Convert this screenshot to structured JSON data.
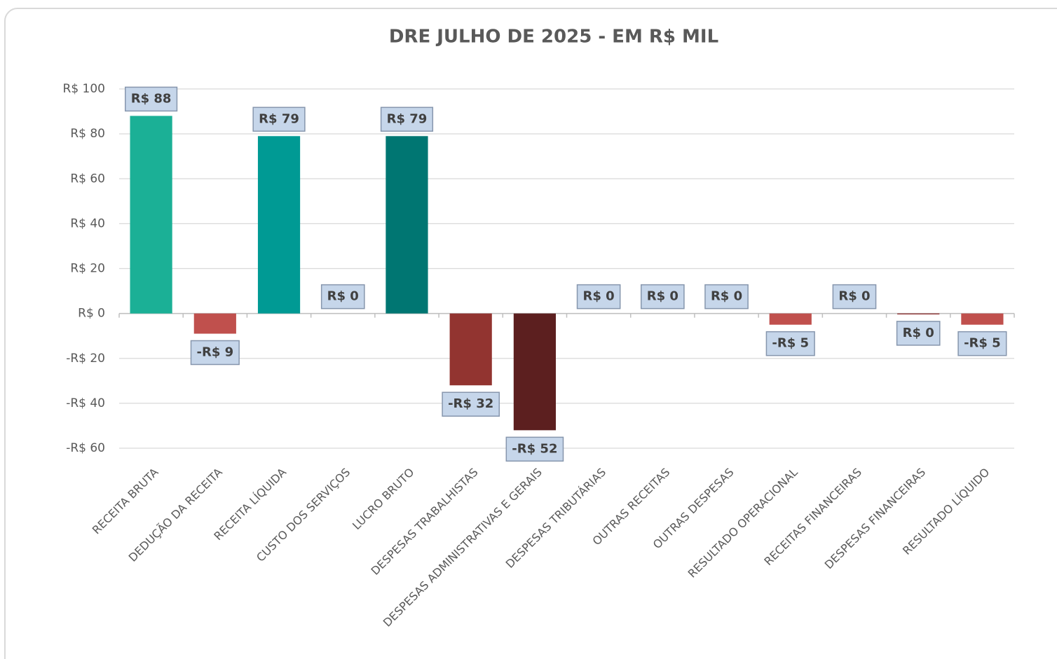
{
  "chart_data": {
    "type": "bar",
    "title": "DRE JULHO DE 2025 - EM R$ MIL",
    "categories": [
      "RECEITA BRUTA",
      "DEDUÇÃO DA RECEITA",
      "RECEITA LÍQUIDA",
      "CUSTO DOS SERVIÇOS",
      "LUCRO BRUTO",
      "DESPESAS TRABALHISTAS",
      "DESPESAS ADMINISTRATIVAS E GERAIS",
      "DESPESAS TRIBUTÁRIAS",
      "OUTRAS RECEITAS",
      "OUTRAS DESPESAS",
      "RESULTADO OPERACIONAL",
      "RECEITAS FINANCEIRAS",
      "DESPESAS FINANCEIRAS",
      "RESULTADO LÍQUIDO"
    ],
    "values": [
      88,
      -9,
      79,
      0,
      79,
      -32,
      -52,
      0,
      0,
      0,
      -5,
      0,
      -0.4,
      -5
    ],
    "value_labels": [
      "R$ 88",
      "-R$ 9",
      "R$ 79",
      "R$ 0",
      "R$ 79",
      "-R$ 32",
      "-R$ 52",
      "R$ 0",
      "R$ 0",
      "R$ 0",
      "-R$ 5",
      "R$ 0",
      "R$ 0",
      "-R$ 5"
    ],
    "colors": [
      "#1bb096",
      "#c0504d",
      "#009a94",
      "#009a94",
      "#007672",
      "#923430",
      "#5c1f1f",
      "#c0504d",
      "#c0504d",
      "#c0504d",
      "#c0504d",
      "#c0504d",
      "#8b2a2a",
      "#c0504d"
    ],
    "ylim": [
      -60,
      100
    ],
    "yticks": [
      {
        "value": -60,
        "label": "-R$ 60"
      },
      {
        "value": -40,
        "label": "-R$ 40"
      },
      {
        "value": -20,
        "label": "-R$ 20"
      },
      {
        "value": 0,
        "label": "R$ 0"
      },
      {
        "value": 20,
        "label": "R$ 20"
      },
      {
        "value": 40,
        "label": "R$ 40"
      },
      {
        "value": 60,
        "label": "R$ 60"
      },
      {
        "value": 80,
        "label": "R$ 80"
      },
      {
        "value": 100,
        "label": "R$ 100"
      }
    ],
    "grid": true
  }
}
